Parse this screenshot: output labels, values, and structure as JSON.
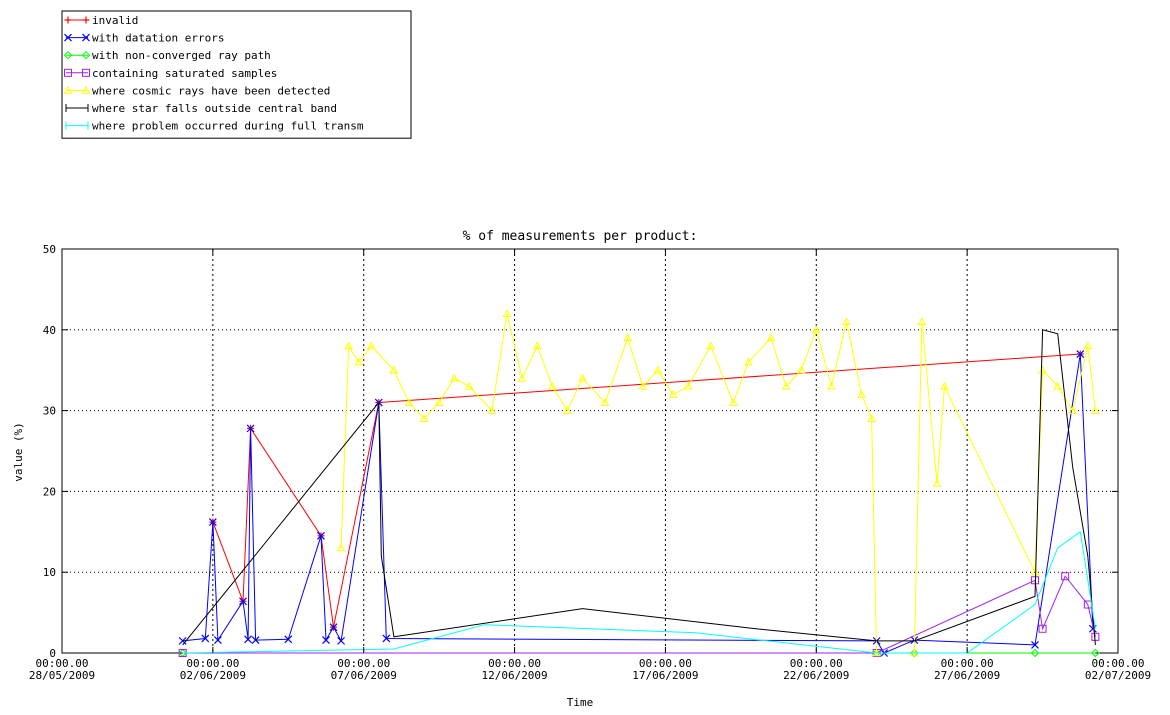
{
  "chart_data": {
    "type": "line",
    "title": "% of measurements per product:",
    "xlabel": "Time",
    "ylabel": "value (%)",
    "ylim": [
      0,
      50
    ],
    "xlim": [
      "2009-05-28",
      "2009-07-02"
    ],
    "grid": true,
    "legend_position": "top-left",
    "y_ticks": [
      0,
      10,
      20,
      30,
      40,
      50
    ],
    "x_ticks": [
      {
        "date": "2009-05-28",
        "time": "00:00.00",
        "label": "28/05/2009"
      },
      {
        "date": "2009-06-02",
        "time": "00:00.00",
        "label": "02/06/2009"
      },
      {
        "date": "2009-06-07",
        "time": "00:00.00",
        "label": "07/06/2009"
      },
      {
        "date": "2009-06-12",
        "time": "00:00.00",
        "label": "12/06/2009"
      },
      {
        "date": "2009-06-17",
        "time": "00:00.00",
        "label": "17/06/2009"
      },
      {
        "date": "2009-06-22",
        "time": "00:00.00",
        "label": "22/06/2009"
      },
      {
        "date": "2009-06-27",
        "time": "00:00.00",
        "label": "27/06/2009"
      },
      {
        "date": "2009-07-02",
        "time": "00:00.00",
        "label": "02/07/2009"
      }
    ],
    "series": [
      {
        "name": "invalid",
        "color": "#ff0000",
        "marker": "plus",
        "points": [
          [
            "2009-06-02 00:00",
            16.2
          ],
          [
            "2009-06-03 00:00",
            6.4
          ],
          [
            "2009-06-03 06:00",
            27.8
          ],
          [
            "2009-06-05 14:00",
            14.5
          ],
          [
            "2009-06-06 00:00",
            3.2
          ],
          [
            "2009-06-07 12:00",
            31.0
          ],
          [
            "2009-06-30 18:00",
            37.0
          ]
        ]
      },
      {
        "name": "with datation errors",
        "color": "#0000ff",
        "marker": "x",
        "points": [
          [
            "2009-06-01 00:00",
            1.5
          ],
          [
            "2009-06-01 18:00",
            1.8
          ],
          [
            "2009-06-02 00:00",
            16.2
          ],
          [
            "2009-06-02 04:00",
            1.6
          ],
          [
            "2009-06-03 00:00",
            6.4
          ],
          [
            "2009-06-03 04:00",
            1.7
          ],
          [
            "2009-06-03 06:00",
            27.8
          ],
          [
            "2009-06-03 10:00",
            1.6
          ],
          [
            "2009-06-04 12:00",
            1.7
          ],
          [
            "2009-06-05 14:00",
            14.5
          ],
          [
            "2009-06-05 18:00",
            1.6
          ],
          [
            "2009-06-06 00:00",
            3.2
          ],
          [
            "2009-06-06 06:00",
            1.5
          ],
          [
            "2009-06-07 12:00",
            31.0
          ],
          [
            "2009-06-07 18:00",
            1.8
          ],
          [
            "2009-06-24 00:00",
            1.5
          ],
          [
            "2009-06-24 06:00",
            0.0
          ],
          [
            "2009-06-25 06:00",
            1.6
          ],
          [
            "2009-06-29 06:00",
            1.0
          ],
          [
            "2009-06-30 18:00",
            37.0
          ],
          [
            "2009-07-01 04:00",
            3.0
          ]
        ]
      },
      {
        "name": "with non-converged ray path",
        "color": "#00ff00",
        "marker": "diamond",
        "points": [
          [
            "2009-06-01 00:00",
            0.0
          ],
          [
            "2009-06-24 00:00",
            0.0
          ],
          [
            "2009-06-25 06:00",
            0.0
          ],
          [
            "2009-06-29 06:00",
            0.0
          ],
          [
            "2009-07-01 06:00",
            0.0
          ]
        ]
      },
      {
        "name": "containing saturated samples",
        "color": "#a020f0",
        "marker": "square",
        "points": [
          [
            "2009-06-01 00:00",
            0.0
          ],
          [
            "2009-06-24 00:00",
            0.0
          ],
          [
            "2009-06-29 06:00",
            9.0
          ],
          [
            "2009-06-29 12:00",
            3.0
          ],
          [
            "2009-06-30 06:00",
            9.5
          ],
          [
            "2009-07-01 00:00",
            6.0
          ],
          [
            "2009-07-01 06:00",
            2.0
          ]
        ]
      },
      {
        "name": "where cosmic rays have been detected",
        "color": "#ffff00",
        "marker": "triangle",
        "points": [
          [
            "2009-06-06 06:00",
            13.0
          ],
          [
            "2009-06-06 12:00",
            38.0
          ],
          [
            "2009-06-06 20:00",
            36.0
          ],
          [
            "2009-06-07 06:00",
            38.0
          ],
          [
            "2009-06-08 00:00",
            35.0
          ],
          [
            "2009-06-08 12:00",
            31.0
          ],
          [
            "2009-06-09 00:00",
            29.0
          ],
          [
            "2009-06-09 12:00",
            31.0
          ],
          [
            "2009-06-10 00:00",
            34.0
          ],
          [
            "2009-06-10 12:00",
            33.0
          ],
          [
            "2009-06-11 06:00",
            30.0
          ],
          [
            "2009-06-11 18:00",
            42.0
          ],
          [
            "2009-06-12 06:00",
            34.0
          ],
          [
            "2009-06-12 18:00",
            38.0
          ],
          [
            "2009-06-13 06:00",
            33.0
          ],
          [
            "2009-06-13 18:00",
            30.0
          ],
          [
            "2009-06-14 06:00",
            34.0
          ],
          [
            "2009-06-15 00:00",
            31.0
          ],
          [
            "2009-06-15 18:00",
            39.0
          ],
          [
            "2009-06-16 06:00",
            33.0
          ],
          [
            "2009-06-16 18:00",
            35.0
          ],
          [
            "2009-06-17 06:00",
            32.0
          ],
          [
            "2009-06-17 18:00",
            33.0
          ],
          [
            "2009-06-18 12:00",
            38.0
          ],
          [
            "2009-06-19 06:00",
            31.0
          ],
          [
            "2009-06-19 18:00",
            36.0
          ],
          [
            "2009-06-20 12:00",
            39.0
          ],
          [
            "2009-06-21 00:00",
            33.0
          ],
          [
            "2009-06-21 12:00",
            35.0
          ],
          [
            "2009-06-22 00:00",
            40.0
          ],
          [
            "2009-06-22 12:00",
            33.0
          ],
          [
            "2009-06-23 00:00",
            41.0
          ],
          [
            "2009-06-23 12:00",
            32.0
          ],
          [
            "2009-06-23 20:00",
            29.0
          ],
          [
            "2009-06-24 00:00",
            0.0
          ],
          [
            "2009-06-25 06:00",
            0.0
          ],
          [
            "2009-06-25 12:00",
            41.0
          ],
          [
            "2009-06-26 00:00",
            21.0
          ],
          [
            "2009-06-26 06:00",
            33.0
          ],
          [
            "2009-06-29 06:00",
            10.0
          ],
          [
            "2009-06-29 12:00",
            35.0
          ],
          [
            "2009-06-30 00:00",
            33.0
          ],
          [
            "2009-06-30 12:00",
            30.0
          ],
          [
            "2009-07-01 00:00",
            38.0
          ],
          [
            "2009-07-01 06:00",
            30.0
          ]
        ]
      },
      {
        "name": "where star falls outside central band",
        "color": "#000000",
        "marker": "none",
        "points": [
          [
            "2009-06-01 00:00",
            1.0
          ],
          [
            "2009-06-07 12:00",
            31.0
          ],
          [
            "2009-06-07 14:00",
            12.0
          ],
          [
            "2009-06-08 00:00",
            2.0
          ],
          [
            "2009-06-14 06:00",
            5.5
          ],
          [
            "2009-06-20 00:00",
            3.0
          ],
          [
            "2009-06-24 00:00",
            1.5
          ],
          [
            "2009-06-25 06:00",
            1.5
          ],
          [
            "2009-06-29 06:00",
            7.0
          ],
          [
            "2009-06-29 12:00",
            40.0
          ],
          [
            "2009-06-30 00:00",
            39.5
          ],
          [
            "2009-06-30 12:00",
            23.0
          ],
          [
            "2009-07-01 00:00",
            12.0
          ],
          [
            "2009-07-01 06:00",
            1.0
          ]
        ]
      },
      {
        "name": "where problem occurred during full transm",
        "color": "#00ffff",
        "marker": "none",
        "points": [
          [
            "2009-06-01 00:00",
            0.0
          ],
          [
            "2009-06-08 00:00",
            0.5
          ],
          [
            "2009-06-11 00:00",
            3.5
          ],
          [
            "2009-06-18 00:00",
            2.5
          ],
          [
            "2009-06-24 00:00",
            0.0
          ],
          [
            "2009-06-27 00:00",
            0.0
          ],
          [
            "2009-06-29 06:00",
            6.0
          ],
          [
            "2009-06-30 00:00",
            13.0
          ],
          [
            "2009-06-30 18:00",
            15.0
          ],
          [
            "2009-07-01 06:00",
            3.0
          ]
        ]
      }
    ]
  }
}
